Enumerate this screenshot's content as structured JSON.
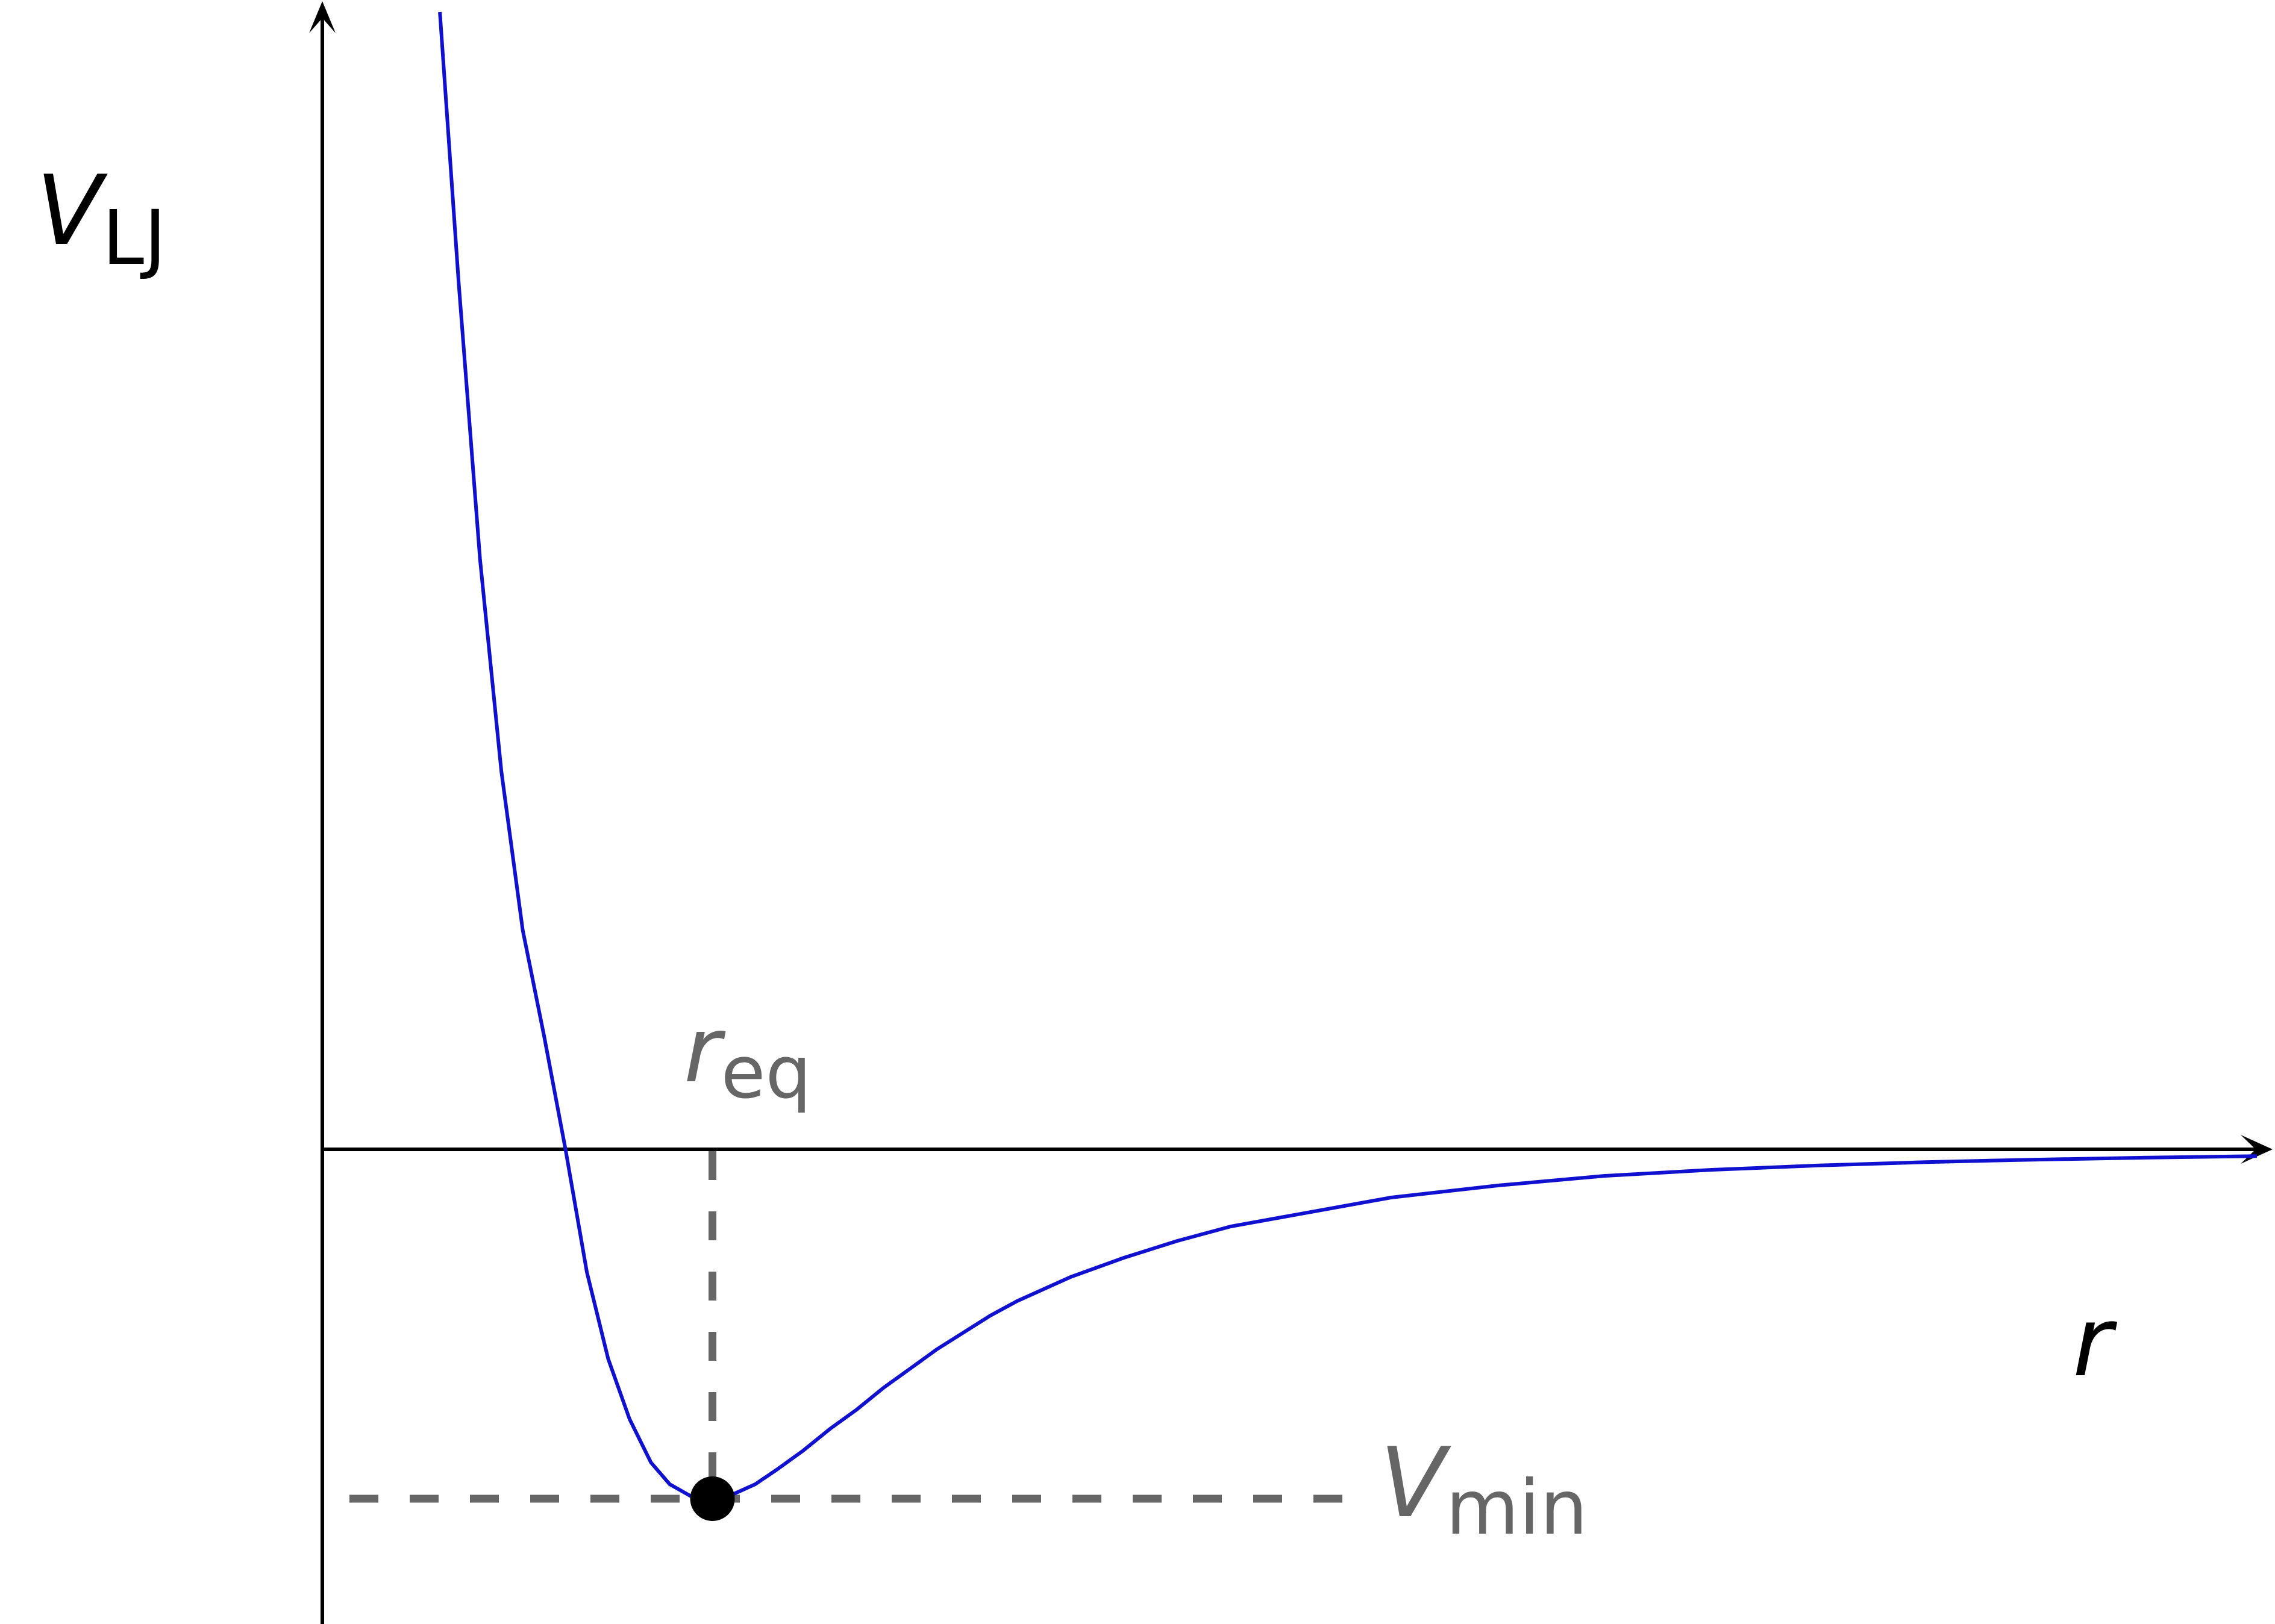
{
  "chart_data": {
    "type": "line",
    "title": "",
    "xlabel": "r",
    "ylabel": "V",
    "ylabel_sub": "LJ",
    "grid": false,
    "legend": "none",
    "xlim": [
      0,
      3.62
    ],
    "ylim": [
      -1.4,
      4.72
    ],
    "series": [
      {
        "color": "#1010d0",
        "x": [
          0.22,
          0.255,
          0.295,
          0.335,
          0.375,
          0.415,
          0.455,
          0.495,
          0.535,
          0.575,
          0.615,
          0.65,
          0.69,
          0.73,
          0.77,
          0.81,
          0.85,
          0.9,
          0.95,
          1.0,
          1.05,
          1.1,
          1.15,
          1.2,
          1.25,
          1.3,
          1.4,
          1.5,
          1.6,
          1.7,
          1.8,
          2.0,
          2.2,
          2.4,
          2.6,
          2.8,
          3.0,
          3.2,
          3.4,
          3.62
        ],
        "y": [
          4.72,
          3.6,
          2.45,
          1.57,
          0.91,
          0.47,
          0.0,
          -0.51,
          -0.87,
          -1.12,
          -1.3,
          -1.39,
          -1.44,
          -1.45,
          -1.43,
          -1.39,
          -1.33,
          -1.25,
          -1.16,
          -1.08,
          -0.99,
          -0.91,
          -0.83,
          -0.76,
          -0.69,
          -0.63,
          -0.53,
          -0.45,
          -0.38,
          -0.32,
          -0.28,
          -0.2,
          -0.15,
          -0.11,
          -0.085,
          -0.067,
          -0.053,
          -0.043,
          -0.035,
          -0.028
        ]
      }
    ],
    "annotations": {
      "min_point": {
        "x": 0.73,
        "y": -1.45
      },
      "r_eq": {
        "main": "r",
        "sub": "eq"
      },
      "v_min": {
        "main": "V",
        "sub": "min"
      }
    }
  }
}
